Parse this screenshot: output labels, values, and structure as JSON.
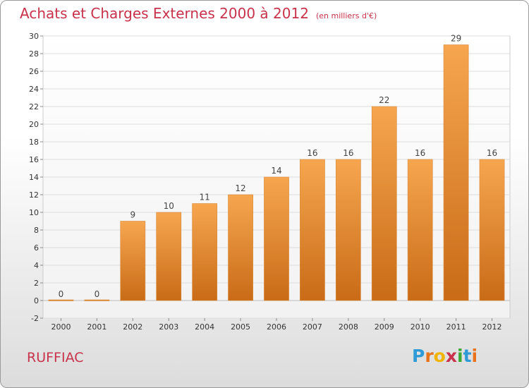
{
  "header": {
    "title": "Achats et Charges Externes 2000 à 2012",
    "unit": "(en milliers d'€)"
  },
  "footer": {
    "commune": "RUFFIAC",
    "logo_letters": [
      "P",
      "r",
      "o",
      "x",
      "i",
      "t",
      "i"
    ],
    "logo_colors": [
      "#2e9bd6",
      "#e8731a",
      "#f0b400",
      "#c8324b",
      "#3aaa35",
      "#2e9bd6",
      "#e8731a"
    ]
  },
  "colors": {
    "title": "#c8324b",
    "bar_top": "#f6a64f",
    "bar_bottom": "#c96b17",
    "grid": "#dddddd"
  },
  "chart_data": {
    "type": "bar",
    "title": "Achats et Charges Externes 2000 à 2012",
    "subtitle": "(en milliers d'€)",
    "categories": [
      "2000",
      "2001",
      "2002",
      "2003",
      "2004",
      "2005",
      "2006",
      "2007",
      "2008",
      "2009",
      "2010",
      "2011",
      "2012"
    ],
    "values": [
      0,
      0,
      9,
      10,
      11,
      12,
      14,
      16,
      16,
      22,
      16,
      29,
      16
    ],
    "ylim": [
      -2,
      30
    ],
    "yticks": [
      -2,
      0,
      2,
      4,
      6,
      8,
      10,
      12,
      14,
      16,
      18,
      20,
      22,
      24,
      26,
      28,
      30
    ],
    "grid": true,
    "legend": "none"
  }
}
